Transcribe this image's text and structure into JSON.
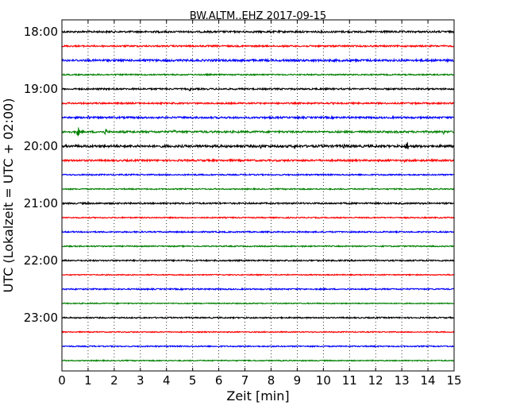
{
  "chart_data": {
    "type": "line",
    "title": "BW.ALTM..EHZ 2017-09-15",
    "xlabel": "Zeit  [min]",
    "ylabel": "UTC (Lokalzeit = UTC + 02:00)",
    "xlim": [
      0,
      15
    ],
    "x_ticks": [
      0,
      1,
      2,
      3,
      4,
      5,
      6,
      7,
      8,
      9,
      10,
      11,
      12,
      13,
      14,
      15
    ],
    "x_tick_labels": [
      "0",
      "1",
      "2",
      "3",
      "4",
      "5",
      "6",
      "7",
      "8",
      "9",
      "10",
      "11",
      "12",
      "13",
      "14",
      "15"
    ],
    "y_ticks": [
      "18:00",
      "19:00",
      "20:00",
      "21:00",
      "22:00",
      "23:00"
    ],
    "grid": {
      "x_dotted": true,
      "y": false
    },
    "trace_colors": [
      "#000000",
      "#ff0000",
      "#0000ff",
      "#008000"
    ],
    "traces": [
      {
        "start": "18:00",
        "amplitude": 0.14,
        "events": []
      },
      {
        "start": "18:15",
        "amplitude": 0.12,
        "events": []
      },
      {
        "start": "18:30",
        "amplitude": 0.16,
        "events": [
          {
            "t": 3.2,
            "amp": 0.4
          }
        ]
      },
      {
        "start": "18:45",
        "amplitude": 0.1,
        "events": []
      },
      {
        "start": "19:00",
        "amplitude": 0.12,
        "events": [
          {
            "t": 4.9,
            "amp": 0.35
          }
        ]
      },
      {
        "start": "19:15",
        "amplitude": 0.12,
        "events": []
      },
      {
        "start": "19:30",
        "amplitude": 0.14,
        "events": [
          {
            "t": 1.0,
            "amp": 0.35
          },
          {
            "t": 6.6,
            "amp": 0.3
          }
        ]
      },
      {
        "start": "19:45",
        "amplitude": 0.15,
        "events": [
          {
            "t": 0.62,
            "amp": 0.9
          },
          {
            "t": 1.68,
            "amp": 0.7
          },
          {
            "t": 4.3,
            "amp": 0.4
          },
          {
            "t": 14.6,
            "amp": 0.35
          }
        ]
      },
      {
        "start": "20:00",
        "amplitude": 0.18,
        "events": [
          {
            "t": 6.0,
            "amp": 0.4
          },
          {
            "t": 7.6,
            "amp": 0.45
          },
          {
            "t": 8.9,
            "amp": 0.4
          },
          {
            "t": 10.8,
            "amp": 0.5
          },
          {
            "t": 13.2,
            "amp": 1.1
          }
        ]
      },
      {
        "start": "20:15",
        "amplitude": 0.14,
        "events": [
          {
            "t": 13.1,
            "amp": 0.35
          }
        ]
      },
      {
        "start": "20:30",
        "amplitude": 0.1,
        "events": []
      },
      {
        "start": "20:45",
        "amplitude": 0.09,
        "events": []
      },
      {
        "start": "21:00",
        "amplitude": 0.12,
        "events": []
      },
      {
        "start": "21:15",
        "amplitude": 0.09,
        "events": []
      },
      {
        "start": "21:30",
        "amplitude": 0.1,
        "events": []
      },
      {
        "start": "21:45",
        "amplitude": 0.09,
        "events": []
      },
      {
        "start": "22:00",
        "amplitude": 0.11,
        "events": []
      },
      {
        "start": "22:15",
        "amplitude": 0.08,
        "events": []
      },
      {
        "start": "22:30",
        "amplitude": 0.1,
        "events": []
      },
      {
        "start": "22:45",
        "amplitude": 0.08,
        "events": []
      },
      {
        "start": "23:00",
        "amplitude": 0.1,
        "events": []
      },
      {
        "start": "23:15",
        "amplitude": 0.08,
        "events": []
      },
      {
        "start": "23:30",
        "amplitude": 0.09,
        "events": []
      },
      {
        "start": "23:45",
        "amplitude": 0.08,
        "events": []
      }
    ]
  }
}
